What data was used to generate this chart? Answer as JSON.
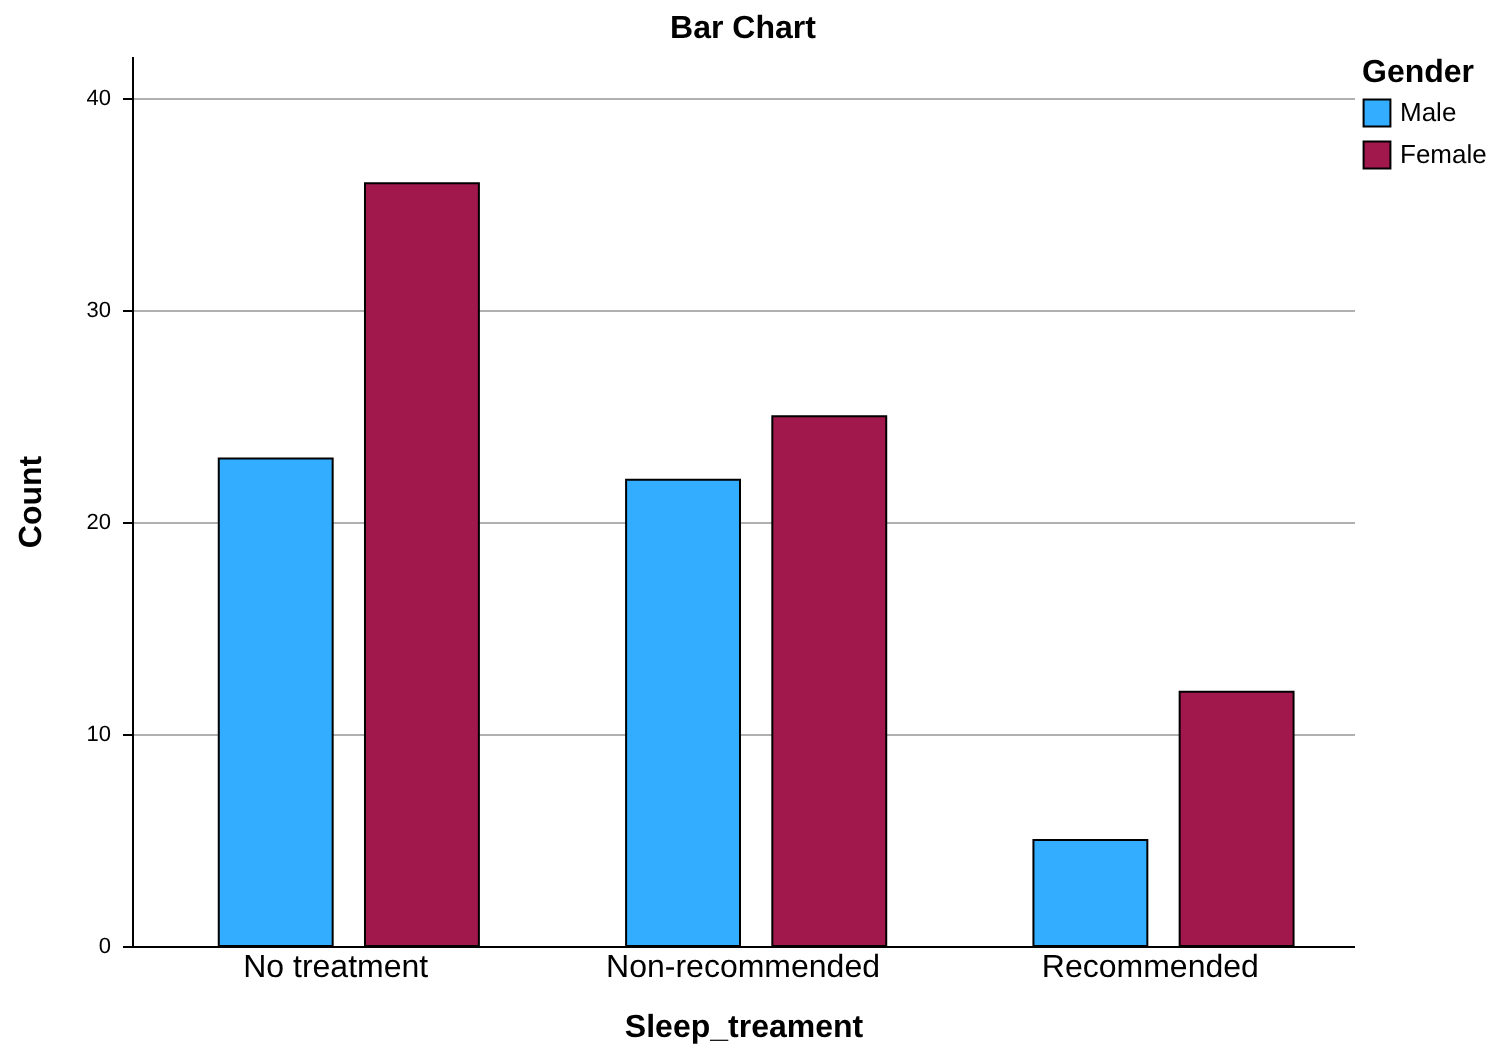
{
  "chart_data": {
    "type": "bar",
    "title": "Bar Chart",
    "xlabel": "Sleep_treament",
    "ylabel": "Count",
    "legend_title": "Gender",
    "categories": [
      "No treatment",
      "Non-recommended",
      "Recommended"
    ],
    "series": [
      {
        "name": "Male",
        "color": "#33adff",
        "values": [
          23,
          22,
          5
        ]
      },
      {
        "name": "Female",
        "color": "#a0184c",
        "values": [
          36,
          25,
          12
        ]
      }
    ],
    "ylim": [
      0,
      42
    ],
    "yticks": [
      0,
      10,
      20,
      30,
      40
    ],
    "grid": "y",
    "legend": "top right"
  }
}
